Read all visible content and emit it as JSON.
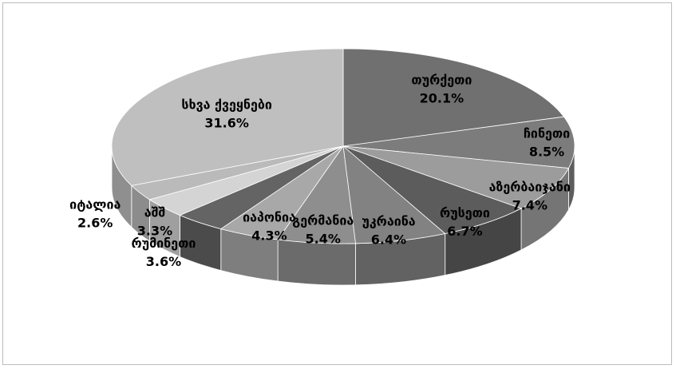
{
  "chart_data": {
    "type": "pie3d",
    "categories": [
      "თურქეთი",
      "ჩინეთი",
      "აზერბაიჯანი",
      "რუსეთი",
      "უკრაინა",
      "გერმანია",
      "იაპონია",
      "რუმინეთი",
      "აშშ",
      "იტალია",
      "სხვა ქვეყნები"
    ],
    "values": [
      20.1,
      8.5,
      7.4,
      6.7,
      6.4,
      5.4,
      4.3,
      3.6,
      3.3,
      2.6,
      31.6
    ],
    "value_labels": [
      "20.1%",
      "8.5%",
      "7.4%",
      "6.7%",
      "6.4%",
      "5.4%",
      "4.3%",
      "3.6%",
      "3.3%",
      "2.6%",
      "31.6%"
    ],
    "colors": [
      "#707070",
      "#7c7c7c",
      "#9c9c9c",
      "#5c5c5c",
      "#828282",
      "#8e8e8e",
      "#a8a8a8",
      "#646464",
      "#d4d4d4",
      "#bababa",
      "#bfbfbf"
    ]
  }
}
